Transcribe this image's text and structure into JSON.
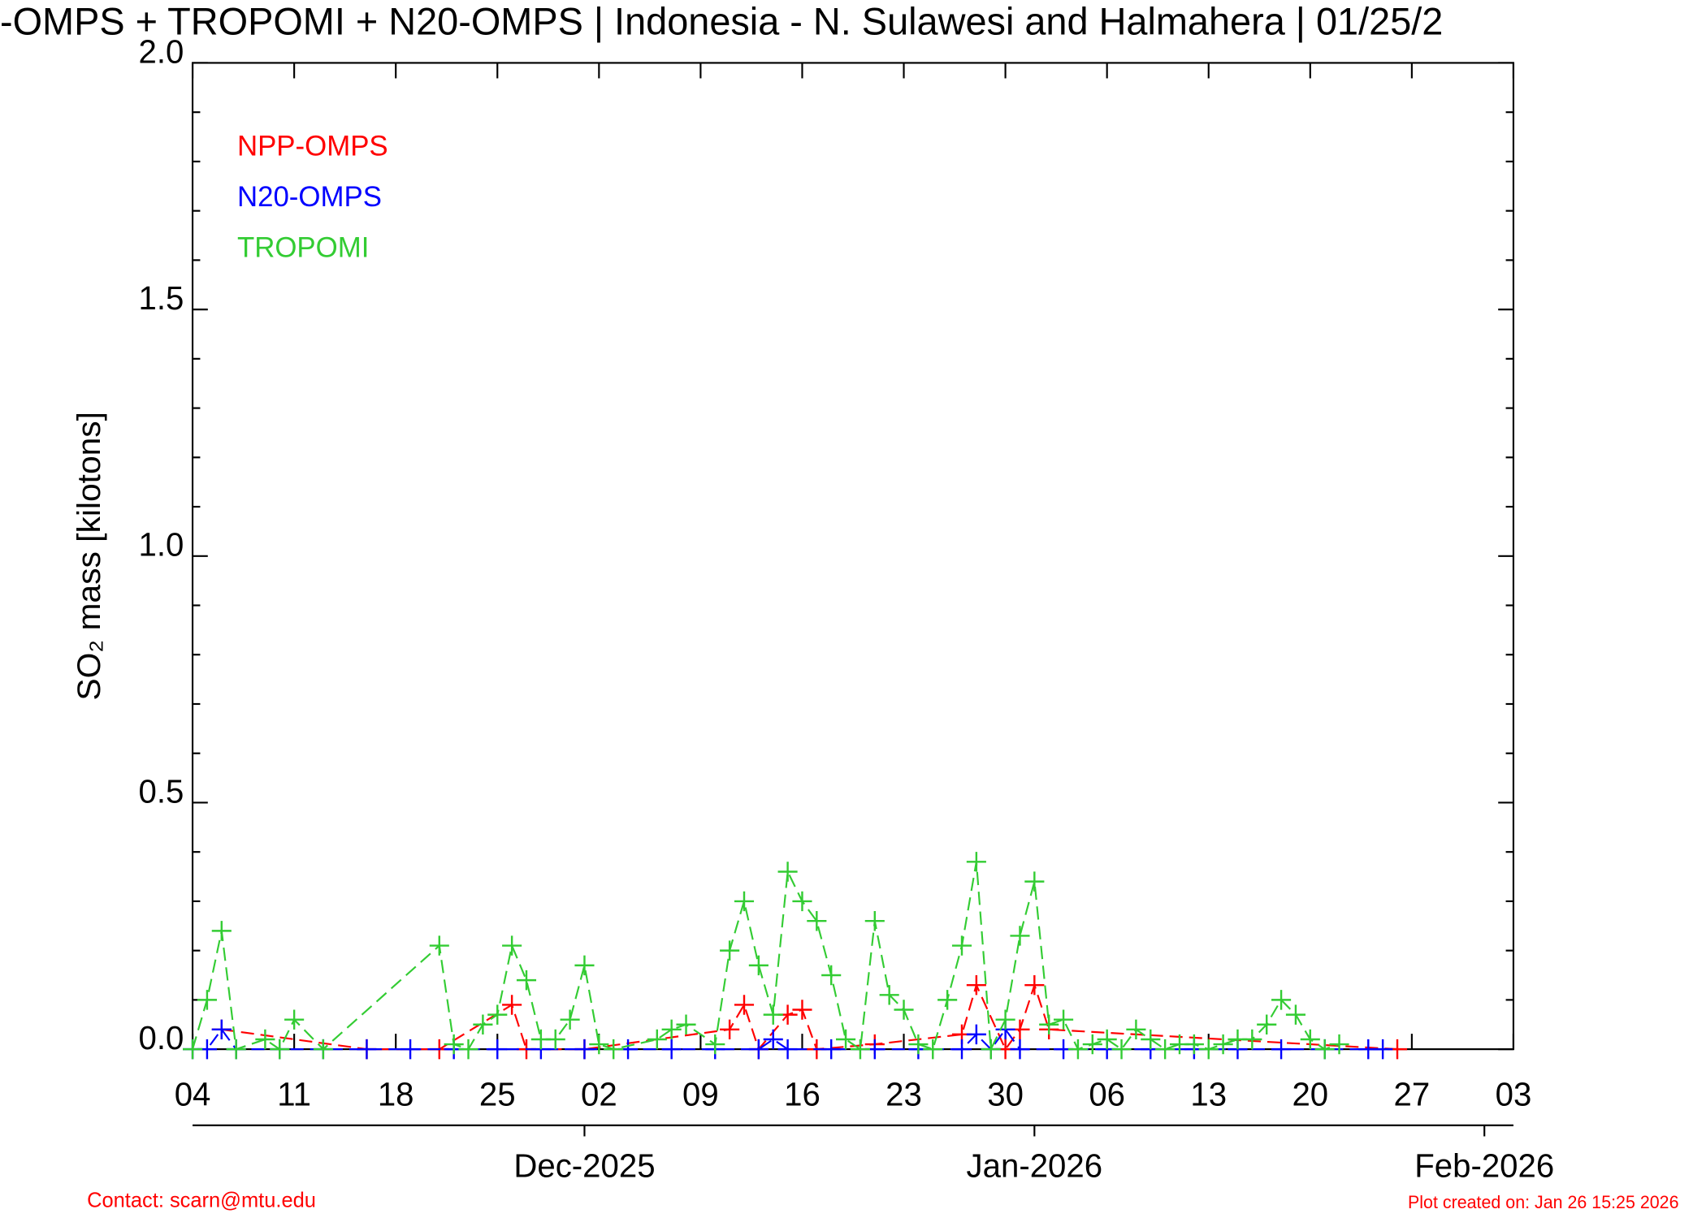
{
  "chart_data": {
    "type": "line",
    "title": "-OMPS + TROPOMI + N20-OMPS | Indonesia - N. Sulawesi and Halmahera | 01/25/2",
    "ylabel": "SO₂ mass [kilotons]",
    "contact": "Contact: scarn@mtu.edu",
    "created": "Plot created on: Jan 26 15:25 2026",
    "xlim": [
      "2025-11-04",
      "2026-02-03"
    ],
    "xticks": [
      {
        "value": "2025-11-04",
        "label": "04"
      },
      {
        "value": "2025-11-11",
        "label": "11"
      },
      {
        "value": "2025-11-18",
        "label": "18"
      },
      {
        "value": "2025-11-25",
        "label": "25"
      },
      {
        "value": "2025-12-02",
        "label": "02"
      },
      {
        "value": "2025-12-09",
        "label": "09"
      },
      {
        "value": "2025-12-16",
        "label": "16"
      },
      {
        "value": "2025-12-23",
        "label": "23"
      },
      {
        "value": "2025-12-30",
        "label": "30"
      },
      {
        "value": "2026-01-06",
        "label": "06"
      },
      {
        "value": "2026-01-13",
        "label": "13"
      },
      {
        "value": "2026-01-20",
        "label": "20"
      },
      {
        "value": "2026-01-27",
        "label": "27"
      },
      {
        "value": "2026-02-03",
        "label": "03"
      }
    ],
    "month_ticks": [
      {
        "value": "2025-12-01",
        "label": "Dec-2025"
      },
      {
        "value": "2026-01-01",
        "label": "Jan-2026"
      },
      {
        "value": "2026-02-01",
        "label": "Feb-2026"
      }
    ],
    "ylim": [
      0,
      2
    ],
    "yticks": [
      {
        "value": 0,
        "label": "0.0"
      },
      {
        "value": 0.5,
        "label": "0.5"
      },
      {
        "value": 1,
        "label": "1.0"
      },
      {
        "value": 1.5,
        "label": "1.5"
      },
      {
        "value": 2,
        "label": "2.0"
      }
    ],
    "series": [
      {
        "name": "NPP-OMPS",
        "color": "#ff0000",
        "x": [
          "2025-11-06",
          "2025-11-16",
          "2025-11-21",
          "2025-11-26",
          "2025-11-27",
          "2025-12-01",
          "2025-12-11",
          "2025-12-12",
          "2025-12-13",
          "2025-12-15",
          "2025-12-16",
          "2025-12-17",
          "2025-12-21",
          "2025-12-27",
          "2025-12-28",
          "2025-12-30",
          "2025-12-31",
          "2026-01-01",
          "2026-01-02",
          "2026-01-26"
        ],
        "values": [
          0.04,
          0,
          0,
          0.09,
          0,
          0,
          0.04,
          0.09,
          0,
          0.07,
          0.08,
          0,
          0.01,
          0.03,
          0.13,
          0,
          0.04,
          0.13,
          0.04,
          0
        ]
      },
      {
        "name": "N20-OMPS",
        "color": "#0000ff",
        "x": [
          "2025-11-04",
          "2025-11-05",
          "2025-11-06",
          "2025-11-07",
          "2025-11-10",
          "2025-11-13",
          "2025-11-16",
          "2025-11-19",
          "2025-11-22",
          "2025-11-25",
          "2025-11-28",
          "2025-12-01",
          "2025-12-04",
          "2025-12-07",
          "2025-12-10",
          "2025-12-13",
          "2025-12-14",
          "2025-12-15",
          "2025-12-18",
          "2025-12-21",
          "2025-12-24",
          "2025-12-27",
          "2025-12-28",
          "2025-12-29",
          "2025-12-30",
          "2025-12-31",
          "2026-01-03",
          "2026-01-06",
          "2026-01-09",
          "2026-01-12",
          "2026-01-15",
          "2026-01-18",
          "2026-01-21",
          "2026-01-24",
          "2026-01-25"
        ],
        "values": [
          0,
          0,
          0.04,
          0,
          0,
          0,
          0,
          0,
          0,
          0,
          0,
          0,
          0,
          0,
          0,
          0,
          0.02,
          0,
          0,
          0,
          0,
          0,
          0.03,
          0,
          0.04,
          0,
          0,
          0,
          0,
          0,
          0,
          0,
          0,
          0,
          0
        ]
      },
      {
        "name": "TROPOMI",
        "color": "#33cc33",
        "x": [
          "2025-11-04",
          "2025-11-05",
          "2025-11-06",
          "2025-11-07",
          "2025-11-09",
          "2025-11-10",
          "2025-11-11",
          "2025-11-13",
          "2025-11-21",
          "2025-11-22",
          "2025-11-23",
          "2025-11-24",
          "2025-11-25",
          "2025-11-26",
          "2025-11-27",
          "2025-11-28",
          "2025-11-29",
          "2025-11-30",
          "2025-12-01",
          "2025-12-02",
          "2025-12-03",
          "2025-12-06",
          "2025-12-07",
          "2025-12-08",
          "2025-12-10",
          "2025-12-11",
          "2025-12-12",
          "2025-12-13",
          "2025-12-14",
          "2025-12-15",
          "2025-12-16",
          "2025-12-17",
          "2025-12-18",
          "2025-12-19",
          "2025-12-20",
          "2025-12-21",
          "2025-12-22",
          "2025-12-23",
          "2025-12-24",
          "2025-12-25",
          "2025-12-26",
          "2025-12-27",
          "2025-12-28",
          "2025-12-29",
          "2025-12-30",
          "2025-12-31",
          "2026-01-01",
          "2026-01-02",
          "2026-01-03",
          "2026-01-04",
          "2026-01-05",
          "2026-01-06",
          "2026-01-07",
          "2026-01-08",
          "2026-01-09",
          "2026-01-10",
          "2026-01-11",
          "2026-01-12",
          "2026-01-13",
          "2026-01-14",
          "2026-01-15",
          "2026-01-16",
          "2026-01-17",
          "2026-01-18",
          "2026-01-19",
          "2026-01-20",
          "2026-01-21",
          "2026-01-22"
        ],
        "values": [
          0,
          0.1,
          0.24,
          0,
          0.02,
          0,
          0.06,
          0,
          0.21,
          0.01,
          0,
          0.05,
          0.07,
          0.21,
          0.14,
          0.02,
          0.02,
          0.06,
          0.17,
          0.01,
          0,
          0.02,
          0.04,
          0.05,
          0.01,
          0.2,
          0.3,
          0.17,
          0.07,
          0.36,
          0.3,
          0.26,
          0.15,
          0.02,
          0,
          0.26,
          0.11,
          0.08,
          0.01,
          0,
          0.1,
          0.21,
          0.38,
          0,
          0.06,
          0.23,
          0.34,
          0.05,
          0.06,
          0,
          0.01,
          0.02,
          0,
          0.04,
          0.02,
          0,
          0.01,
          0.01,
          0,
          0.01,
          0.02,
          0.02,
          0.05,
          0.1,
          0.07,
          0.02,
          0,
          0.01
        ]
      }
    ]
  }
}
